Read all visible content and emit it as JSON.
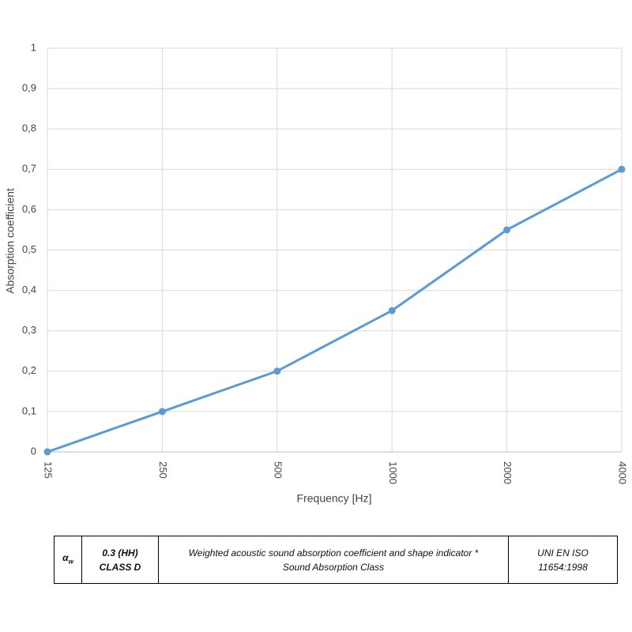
{
  "chart_data": {
    "type": "line",
    "x_label": "Frequency [Hz]",
    "y_label": "Absorption coefficient",
    "categories": [
      "125",
      "250",
      "500",
      "1000",
      "2000",
      "4000"
    ],
    "series": [
      {
        "color": "#5b9bd5",
        "values": [
          0,
          0.1,
          0.2,
          0.35,
          0.55,
          0.7
        ]
      }
    ],
    "ylim": [
      0,
      1
    ],
    "yticks": [
      0,
      {
        "value": 0.1,
        "label": "0,1"
      },
      {
        "value": 0.2,
        "label": "0,2"
      },
      {
        "value": 0.3,
        "label": "0,3"
      },
      {
        "value": 0.4,
        "label": "0,4"
      },
      {
        "value": 0.5,
        "label": "0,5"
      },
      {
        "value": 0.6,
        "label": "0,6"
      },
      {
        "value": 0.7,
        "label": "0,7"
      },
      {
        "value": 0.8,
        "label": "0,8"
      },
      {
        "value": 0.9,
        "label": "0,9"
      },
      1
    ],
    "grid": true
  },
  "table": {
    "rows": [
      [
        {
          "symbol": "α",
          "subscript": "w"
        },
        [
          "0.3 (HH)",
          "CLASS D"
        ],
        [
          "Weighted acoustic sound absorption coefficient and shape indicator *",
          "Sound Absorption Class"
        ],
        [
          "UNI EN ISO",
          "11654:1998"
        ]
      ]
    ]
  }
}
